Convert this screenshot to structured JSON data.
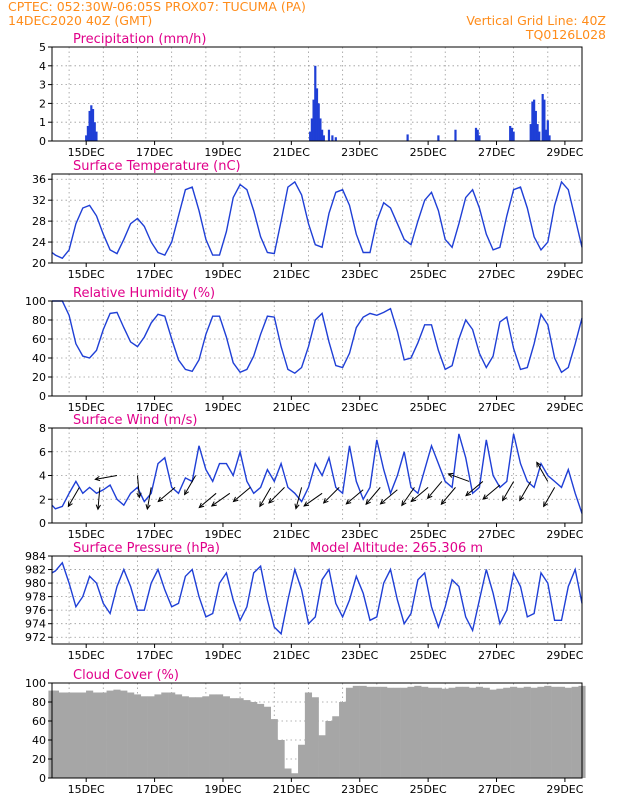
{
  "header": {
    "line1_left": "CPTEC:   052:30W-06:05S   PROX07: TUCUMA (PA)",
    "line2_left": "14DEC2020 40Z (GMT)",
    "line2_right": "Vertical Grid Line: 40Z",
    "line3_right": "TQ0126L028"
  },
  "colors": {
    "header": "#ff8c1a",
    "title": "#e0008a",
    "series": "#1f3fd6",
    "cloud": "#a6a6a6",
    "grid": "#9a9a9a"
  },
  "x_tick_labels": [
    "15DEC",
    "17DEC",
    "19DEC",
    "21DEC",
    "23DEC",
    "25DEC",
    "27DEC",
    "29DEC"
  ],
  "panels": {
    "precip": {
      "title": "Precipitation (mm/h)"
    },
    "temp": {
      "title": "Surface Temperature (nC)"
    },
    "rh": {
      "title": "Relative Humidity (%)"
    },
    "wind": {
      "title": "Surface Wind (m/s)"
    },
    "pres": {
      "title": "Surface Pressure (hPa)",
      "extra": "Model Altitude: 265.306 m"
    },
    "cloud": {
      "title": "Cloud Cover (%)"
    }
  },
  "chart_data": [
    {
      "id": "precip",
      "type": "bar",
      "title": "Precipitation (mm/h)",
      "ylim": [
        0,
        5
      ],
      "yticks": [
        0,
        1,
        2,
        3,
        4,
        5
      ],
      "x_units": "days since 14DEC2020 00Z",
      "xlim": [
        0,
        15.5
      ],
      "x": [
        1.0,
        1.05,
        1.1,
        1.15,
        1.2,
        1.25,
        1.3,
        7.55,
        7.6,
        7.65,
        7.7,
        7.75,
        7.8,
        7.85,
        7.9,
        7.95,
        8.1,
        8.2,
        8.3,
        10.4,
        11.3,
        11.8,
        12.4,
        12.45,
        12.5,
        13.4,
        13.45,
        13.5,
        14.0,
        14.05,
        14.1,
        14.15,
        14.2,
        14.25,
        14.35,
        14.4,
        14.45,
        14.5,
        14.55
      ],
      "values": [
        0.3,
        0.8,
        1.6,
        1.9,
        1.7,
        1.0,
        0.5,
        0.5,
        1.2,
        2.2,
        4.0,
        2.8,
        2.0,
        1.2,
        0.6,
        0.3,
        0.6,
        0.3,
        0.2,
        0.35,
        0.3,
        0.6,
        0.7,
        0.6,
        0.3,
        0.8,
        0.7,
        0.5,
        0.9,
        2.1,
        2.2,
        1.6,
        0.9,
        0.5,
        2.5,
        2.2,
        0.6,
        1.1,
        0.3
      ]
    },
    {
      "id": "temp",
      "type": "line",
      "title": "Surface Temperature (nC)",
      "ylim": [
        20,
        37
      ],
      "yticks": [
        20,
        24,
        28,
        32,
        36
      ],
      "x": [
        0.0,
        0.1,
        0.3,
        0.5,
        0.7,
        0.9,
        1.1,
        1.3,
        1.5,
        1.7,
        1.9,
        2.1,
        2.3,
        2.5,
        2.7,
        2.9,
        3.1,
        3.3,
        3.5,
        3.7,
        3.9,
        4.1,
        4.3,
        4.5,
        4.7,
        4.9,
        5.1,
        5.3,
        5.5,
        5.7,
        5.9,
        6.1,
        6.3,
        6.5,
        6.7,
        6.9,
        7.1,
        7.3,
        7.5,
        7.7,
        7.9,
        8.1,
        8.3,
        8.5,
        8.7,
        8.9,
        9.1,
        9.3,
        9.5,
        9.7,
        9.9,
        10.1,
        10.3,
        10.5,
        10.7,
        10.9,
        11.1,
        11.3,
        11.5,
        11.7,
        11.9,
        12.1,
        12.3,
        12.5,
        12.7,
        12.9,
        13.1,
        13.3,
        13.5,
        13.7,
        13.9,
        14.1,
        14.3,
        14.5,
        14.7,
        14.9,
        15.1,
        15.3,
        15.5
      ],
      "values": [
        22.0,
        21.5,
        20.9,
        22.5,
        27.5,
        30.5,
        31.0,
        29.0,
        25.5,
        22.5,
        21.8,
        24.5,
        27.5,
        28.5,
        27.0,
        24.0,
        22.0,
        21.5,
        24.0,
        29.0,
        34.0,
        34.5,
        30.0,
        24.5,
        21.5,
        21.5,
        26.0,
        32.5,
        35.0,
        34.0,
        30.0,
        25.0,
        22.0,
        21.8,
        28.0,
        34.5,
        35.5,
        33.0,
        27.5,
        23.5,
        23.0,
        29.5,
        33.5,
        34.0,
        31.0,
        25.5,
        22.0,
        22.0,
        28.0,
        31.5,
        30.5,
        27.5,
        24.5,
        23.5,
        28.0,
        32.0,
        33.5,
        30.0,
        24.5,
        23.0,
        27.5,
        32.5,
        34.0,
        30.5,
        25.5,
        22.5,
        23.0,
        29.0,
        34.0,
        34.5,
        30.5,
        25.0,
        22.5,
        24.0,
        31.0,
        35.5,
        34.0,
        28.5,
        23.0
      ]
    },
    {
      "id": "rh",
      "type": "line",
      "title": "Relative Humidity (%)",
      "ylim": [
        0,
        100
      ],
      "yticks": [
        0,
        20,
        40,
        60,
        80,
        100
      ],
      "x": [
        0.0,
        0.1,
        0.3,
        0.5,
        0.7,
        0.9,
        1.1,
        1.3,
        1.5,
        1.7,
        1.9,
        2.1,
        2.3,
        2.5,
        2.7,
        2.9,
        3.1,
        3.3,
        3.5,
        3.7,
        3.9,
        4.1,
        4.3,
        4.5,
        4.7,
        4.9,
        5.1,
        5.3,
        5.5,
        5.7,
        5.9,
        6.1,
        6.3,
        6.5,
        6.7,
        6.9,
        7.1,
        7.3,
        7.5,
        7.7,
        7.9,
        8.1,
        8.3,
        8.5,
        8.7,
        8.9,
        9.1,
        9.3,
        9.5,
        9.7,
        9.9,
        10.1,
        10.3,
        10.5,
        10.7,
        10.9,
        11.1,
        11.3,
        11.5,
        11.7,
        11.9,
        12.1,
        12.3,
        12.5,
        12.7,
        12.9,
        13.1,
        13.3,
        13.5,
        13.7,
        13.9,
        14.1,
        14.3,
        14.5,
        14.7,
        14.9,
        15.1,
        15.3,
        15.5
      ],
      "values": [
        100.0,
        100.0,
        100.0,
        85.0,
        55.0,
        42.0,
        40.0,
        48.0,
        70.0,
        87.0,
        88.0,
        72.0,
        57.0,
        52.0,
        62.0,
        77.0,
        86.0,
        84.0,
        60.0,
        38.0,
        28.0,
        26.0,
        38.0,
        65.0,
        84.0,
        84.0,
        62.0,
        35.0,
        25.0,
        28.0,
        42.0,
        65.0,
        84.0,
        83.0,
        52.0,
        28.0,
        24.0,
        30.0,
        52.0,
        80.0,
        87.0,
        57.0,
        32.0,
        30.0,
        45.0,
        72.0,
        83.0,
        87.0,
        85.0,
        88.0,
        92.0,
        68.0,
        38.0,
        40.0,
        56.0,
        75.0,
        75.0,
        48.0,
        28.0,
        32.0,
        60.0,
        80.0,
        70.0,
        45.0,
        30.0,
        42.0,
        78.0,
        83.0,
        50.0,
        28.0,
        30.0,
        55.0,
        86.0,
        75.0,
        40.0,
        25.0,
        30.0,
        55.0,
        82.0
      ]
    },
    {
      "id": "wind",
      "type": "line",
      "title": "Surface Wind (m/s)",
      "ylim": [
        0,
        8
      ],
      "yticks": [
        0,
        2,
        4,
        6,
        8
      ],
      "x": [
        0.0,
        0.1,
        0.3,
        0.5,
        0.7,
        0.9,
        1.1,
        1.3,
        1.5,
        1.7,
        1.9,
        2.1,
        2.3,
        2.5,
        2.7,
        2.9,
        3.1,
        3.3,
        3.5,
        3.7,
        3.9,
        4.1,
        4.3,
        4.5,
        4.7,
        4.9,
        5.1,
        5.3,
        5.5,
        5.7,
        5.9,
        6.1,
        6.3,
        6.5,
        6.7,
        6.9,
        7.1,
        7.3,
        7.5,
        7.7,
        7.9,
        8.1,
        8.3,
        8.5,
        8.7,
        8.9,
        9.1,
        9.3,
        9.5,
        9.7,
        9.9,
        10.1,
        10.3,
        10.5,
        10.7,
        10.9,
        11.1,
        11.3,
        11.5,
        11.7,
        11.9,
        12.1,
        12.3,
        12.5,
        12.7,
        12.9,
        13.1,
        13.3,
        13.5,
        13.7,
        13.9,
        14.1,
        14.3,
        14.5,
        14.7,
        14.9,
        15.1,
        15.3,
        15.5
      ],
      "values": [
        1.5,
        1.2,
        1.4,
        2.5,
        3.5,
        2.5,
        3.0,
        2.5,
        2.8,
        3.2,
        2.0,
        1.5,
        2.5,
        3.0,
        1.8,
        2.5,
        5.0,
        5.5,
        3.0,
        2.5,
        3.8,
        3.5,
        6.5,
        4.5,
        3.5,
        5.0,
        5.0,
        4.0,
        6.0,
        3.5,
        2.5,
        3.0,
        4.5,
        3.5,
        5.0,
        3.0,
        2.5,
        1.8,
        3.0,
        5.0,
        4.0,
        5.5,
        3.0,
        2.5,
        6.5,
        3.5,
        2.0,
        3.0,
        7.0,
        4.5,
        2.5,
        4.0,
        6.0,
        3.0,
        2.5,
        4.5,
        6.5,
        5.0,
        3.5,
        3.0,
        7.5,
        5.5,
        2.5,
        3.0,
        7.0,
        4.0,
        3.0,
        3.5,
        7.5,
        5.0,
        3.5,
        3.0,
        5.0,
        4.0,
        3.5,
        3.0,
        4.5,
        2.5,
        0.8
      ]
    },
    {
      "id": "pres",
      "type": "line",
      "title": "Surface Pressure (hPa)",
      "ylim": [
        971,
        984
      ],
      "yticks": [
        972,
        974,
        976,
        978,
        980,
        982,
        984
      ],
      "x": [
        0.0,
        0.1,
        0.3,
        0.5,
        0.7,
        0.9,
        1.1,
        1.3,
        1.5,
        1.7,
        1.9,
        2.1,
        2.3,
        2.5,
        2.7,
        2.9,
        3.1,
        3.3,
        3.5,
        3.7,
        3.9,
        4.1,
        4.3,
        4.5,
        4.7,
        4.9,
        5.1,
        5.3,
        5.5,
        5.7,
        5.9,
        6.1,
        6.3,
        6.5,
        6.7,
        6.9,
        7.1,
        7.3,
        7.5,
        7.7,
        7.9,
        8.1,
        8.3,
        8.5,
        8.7,
        8.9,
        9.1,
        9.3,
        9.5,
        9.7,
        9.9,
        10.1,
        10.3,
        10.5,
        10.7,
        10.9,
        11.1,
        11.3,
        11.5,
        11.7,
        11.9,
        12.1,
        12.3,
        12.5,
        12.7,
        12.9,
        13.1,
        13.3,
        13.5,
        13.7,
        13.9,
        14.1,
        14.3,
        14.5,
        14.7,
        14.9,
        15.1,
        15.3,
        15.5
      ],
      "values": [
        981.5,
        981.8,
        983.0,
        980.0,
        976.5,
        978.0,
        981.0,
        980.0,
        977.0,
        975.5,
        979.5,
        982.0,
        979.5,
        976.0,
        976.0,
        980.0,
        982.0,
        979.0,
        976.5,
        977.0,
        981.0,
        982.0,
        978.0,
        975.0,
        975.5,
        980.0,
        981.5,
        977.5,
        974.5,
        976.5,
        981.5,
        982.5,
        977.5,
        973.5,
        972.5,
        977.5,
        982.0,
        979.0,
        974.0,
        975.0,
        980.5,
        982.0,
        977.0,
        975.0,
        977.5,
        981.0,
        978.5,
        974.5,
        975.0,
        980.0,
        982.0,
        977.5,
        974.0,
        975.5,
        980.5,
        981.5,
        976.5,
        973.5,
        976.5,
        980.5,
        979.5,
        975.0,
        973.0,
        977.5,
        982.0,
        978.5,
        974.0,
        976.0,
        981.5,
        979.5,
        975.0,
        975.5,
        981.5,
        980.0,
        974.5,
        974.5,
        979.5,
        982.0,
        977.0
      ]
    },
    {
      "id": "cloud",
      "type": "bar",
      "title": "Cloud Cover (%)",
      "ylim": [
        0,
        100
      ],
      "yticks": [
        0,
        20,
        40,
        60,
        80,
        100
      ],
      "x": [
        0.0,
        0.1,
        0.3,
        0.5,
        0.7,
        0.9,
        1.1,
        1.3,
        1.5,
        1.7,
        1.9,
        2.1,
        2.3,
        2.5,
        2.7,
        2.9,
        3.1,
        3.3,
        3.5,
        3.7,
        3.9,
        4.1,
        4.3,
        4.5,
        4.7,
        4.9,
        5.1,
        5.3,
        5.5,
        5.7,
        5.9,
        6.1,
        6.3,
        6.5,
        6.7,
        6.9,
        7.1,
        7.3,
        7.5,
        7.7,
        7.9,
        8.1,
        8.3,
        8.5,
        8.7,
        8.9,
        9.1,
        9.3,
        9.5,
        9.7,
        9.9,
        10.1,
        10.3,
        10.5,
        10.7,
        10.9,
        11.1,
        11.3,
        11.5,
        11.7,
        11.9,
        12.1,
        12.3,
        12.5,
        12.7,
        12.9,
        13.1,
        13.3,
        13.5,
        13.7,
        13.9,
        14.1,
        14.3,
        14.5,
        14.7,
        14.9,
        15.1,
        15.3,
        15.5
      ],
      "values": [
        92.0,
        92.0,
        90.0,
        90.0,
        90.0,
        90.0,
        92.0,
        90.0,
        90.0,
        92.0,
        93.0,
        92.0,
        90.0,
        88.0,
        86.0,
        86.0,
        88.0,
        90.0,
        90.0,
        88.0,
        86.0,
        85.0,
        85.0,
        86.0,
        88.0,
        88.0,
        86.0,
        84.0,
        84.0,
        82.0,
        80.0,
        78.0,
        75.0,
        62.0,
        40.0,
        10.0,
        5.0,
        35.0,
        90.0,
        85.0,
        45.0,
        60.0,
        65.0,
        80.0,
        95.0,
        97.0,
        97.0,
        96.0,
        96.0,
        96.0,
        95.0,
        95.0,
        95.0,
        96.0,
        97.0,
        96.0,
        95.0,
        95.0,
        94.0,
        95.0,
        96.0,
        96.0,
        95.0,
        96.0,
        95.0,
        93.0,
        94.0,
        95.0,
        96.0,
        95.0,
        96.0,
        95.0,
        96.0,
        97.0,
        96.0,
        96.0,
        95.0,
        96.0,
        97.0
      ]
    }
  ]
}
